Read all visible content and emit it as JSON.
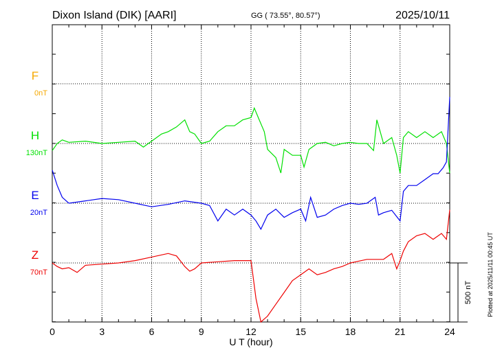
{
  "header": {
    "station": "Dixon Island (DIK)  [AARI]",
    "coords": "GG ( 73.55°,  80.57°)",
    "date": "2025/10/11"
  },
  "footer_note": "Plotted at 2025/11/11 00:45 UT",
  "chart_data": {
    "type": "line",
    "xlabel": "U T (hour)",
    "xlim": [
      0,
      24
    ],
    "xticks": [
      0,
      3,
      6,
      9,
      12,
      15,
      18,
      21,
      24
    ],
    "ylabel": "nT",
    "scale_bar": {
      "label": "500 nT",
      "value": 500
    },
    "gridlines": "dotted",
    "series": [
      {
        "name": "F",
        "baseline_label": "0nT",
        "color": "#f5a800",
        "x": [],
        "y": []
      },
      {
        "name": "H",
        "baseline_label": "130nT",
        "color": "#00e000",
        "x": [
          0,
          0.3,
          0.6,
          1,
          2,
          3,
          4,
          5,
          5.5,
          5.8,
          6,
          6.3,
          6.6,
          7,
          7.5,
          8,
          8.3,
          8.6,
          9,
          9.5,
          10,
          10.5,
          11,
          11.5,
          12,
          12.2,
          12.5,
          12.8,
          13,
          13.5,
          13.8,
          14,
          14.5,
          15,
          15.2,
          15.5,
          16,
          16.5,
          17,
          17.5,
          18,
          18.5,
          19,
          19.4,
          19.6,
          19.8,
          20,
          20.5,
          20.8,
          21,
          21.2,
          21.5,
          22,
          22.5,
          23,
          23.5,
          23.8,
          24
        ],
        "y": [
          -60,
          0,
          30,
          10,
          20,
          0,
          10,
          20,
          -30,
          0,
          20,
          50,
          80,
          100,
          140,
          200,
          100,
          80,
          0,
          20,
          100,
          150,
          150,
          200,
          220,
          300,
          200,
          100,
          -50,
          -120,
          -250,
          -50,
          -100,
          -100,
          -200,
          -50,
          0,
          10,
          -20,
          0,
          10,
          0,
          0,
          -60,
          200,
          100,
          0,
          50,
          -100,
          -250,
          50,
          100,
          50,
          100,
          50,
          100,
          0,
          -250
        ]
      },
      {
        "name": "E",
        "baseline_label": "20nT",
        "color": "#0000ee",
        "x": [
          0,
          0.3,
          0.6,
          1,
          2,
          3,
          4,
          5,
          6,
          7,
          8,
          9,
          9.5,
          10,
          10.5,
          11,
          11.5,
          12,
          12.3,
          12.6,
          13,
          13.5,
          14,
          14.5,
          15,
          15.3,
          15.6,
          16,
          16.5,
          17,
          17.5,
          18,
          18.5,
          19,
          19.5,
          19.7,
          20,
          20.5,
          21,
          21.2,
          21.5,
          22,
          22.5,
          23,
          23.3,
          23.6,
          23.8,
          24
        ],
        "y": [
          280,
          150,
          50,
          0,
          20,
          40,
          30,
          0,
          -30,
          -10,
          20,
          0,
          -20,
          -150,
          -50,
          -100,
          -50,
          -100,
          -150,
          -220,
          -100,
          -50,
          -120,
          -80,
          -50,
          -150,
          50,
          -120,
          -100,
          -50,
          -20,
          0,
          -10,
          0,
          50,
          -100,
          -80,
          -60,
          -150,
          100,
          150,
          150,
          200,
          250,
          250,
          300,
          350,
          900
        ]
      },
      {
        "name": "Z",
        "baseline_label": "70nT",
        "color": "#ee0000",
        "x": [
          0,
          0.3,
          0.6,
          1,
          1.5,
          2,
          3,
          4,
          5,
          6,
          7,
          7.5,
          8,
          8.3,
          8.6,
          9,
          10,
          11,
          12,
          12.3,
          12.6,
          13,
          13.5,
          14,
          14.5,
          15,
          15.5,
          16,
          16.5,
          17,
          17.5,
          18,
          19,
          20,
          20.5,
          20.8,
          21,
          21.2,
          21.5,
          22,
          22.5,
          23,
          23.5,
          23.8,
          24
        ],
        "y": [
          0,
          -30,
          -50,
          -40,
          -80,
          -20,
          -10,
          0,
          20,
          50,
          80,
          60,
          -30,
          -70,
          -50,
          0,
          10,
          20,
          20,
          -300,
          -500,
          -450,
          -350,
          -250,
          -150,
          -100,
          -50,
          -100,
          -80,
          -50,
          -30,
          0,
          30,
          30,
          80,
          -50,
          20,
          100,
          180,
          230,
          250,
          200,
          250,
          200,
          450
        ]
      }
    ]
  }
}
